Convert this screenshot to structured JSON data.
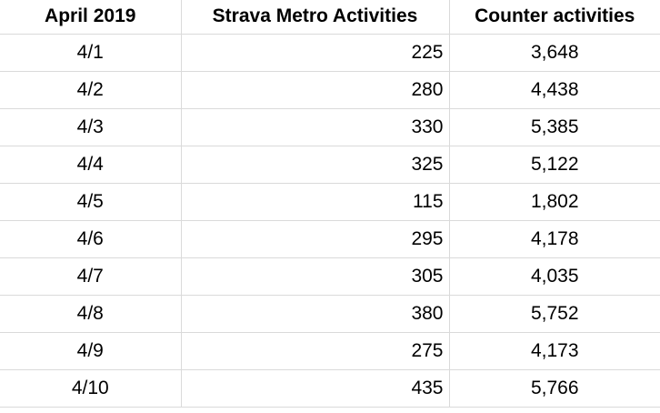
{
  "table": {
    "headers": [
      "April 2019",
      "Strava Metro Activities",
      "Counter activities"
    ],
    "rows": [
      {
        "date": "4/1",
        "strava": "225",
        "counter": "3,648"
      },
      {
        "date": "4/2",
        "strava": "280",
        "counter": "4,438"
      },
      {
        "date": "4/3",
        "strava": "330",
        "counter": "5,385"
      },
      {
        "date": "4/4",
        "strava": "325",
        "counter": "5,122"
      },
      {
        "date": "4/5",
        "strava": "115",
        "counter": "1,802"
      },
      {
        "date": "4/6",
        "strava": "295",
        "counter": "4,178"
      },
      {
        "date": "4/7",
        "strava": "305",
        "counter": "4,035"
      },
      {
        "date": "4/8",
        "strava": "380",
        "counter": "5,752"
      },
      {
        "date": "4/9",
        "strava": "275",
        "counter": "4,173"
      },
      {
        "date": "4/10",
        "strava": "435",
        "counter": "5,766"
      }
    ]
  },
  "colors": {
    "grid_line": "#dadada",
    "text": "#000000",
    "background": "#ffffff"
  }
}
